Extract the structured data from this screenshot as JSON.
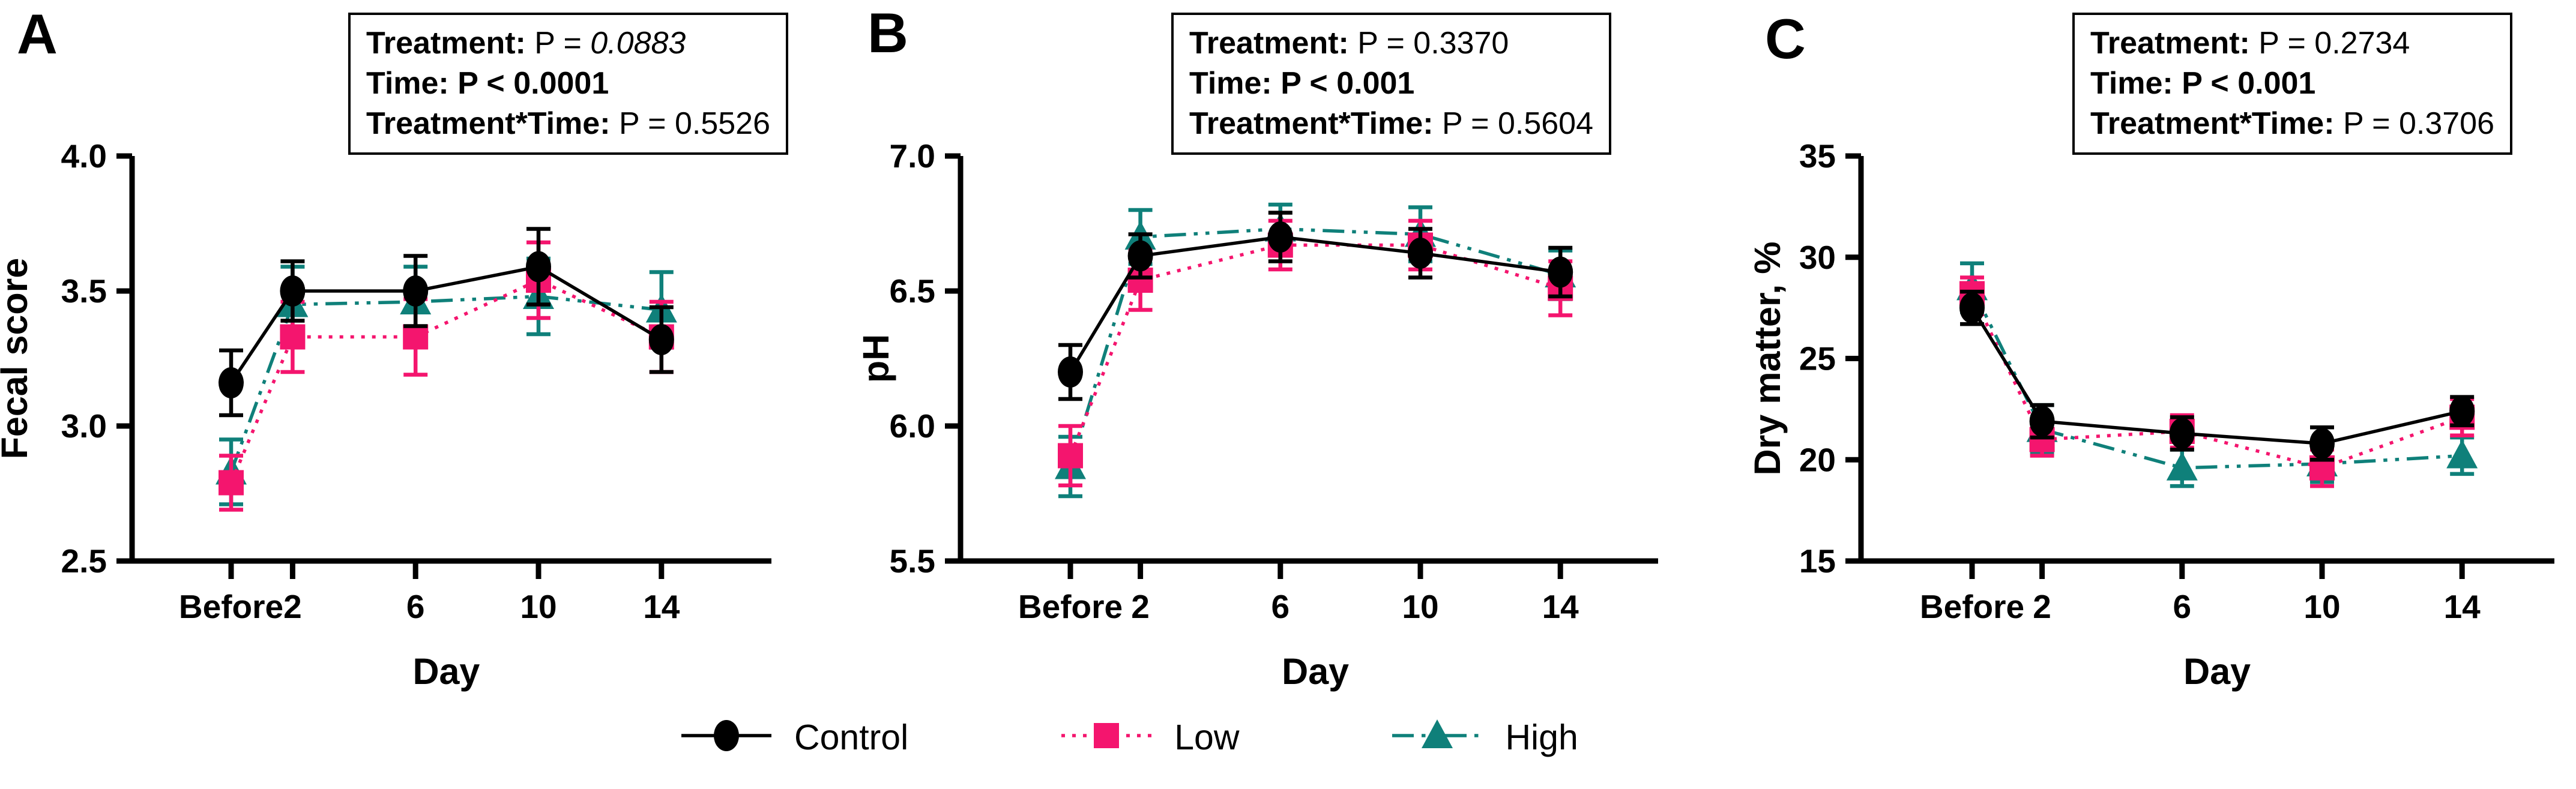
{
  "series_styles": [
    {
      "name": "Control",
      "color": "#000000",
      "marker": "circle",
      "line": "solid"
    },
    {
      "name": "Low",
      "color": "#F4156E",
      "marker": "square",
      "line": "dotted"
    },
    {
      "name": "High",
      "color": "#0F807A",
      "marker": "triangle",
      "line": "dashdot"
    }
  ],
  "legend": {
    "items": [
      {
        "label": "Control"
      },
      {
        "label": "Low"
      },
      {
        "label": "High"
      }
    ]
  },
  "chart_data": [
    {
      "type": "line",
      "panel": "A",
      "ylabel": "Fecal score",
      "xlabel": "Day",
      "ylim": [
        2.5,
        4.0
      ],
      "yticks": [
        "2.5",
        "3.0",
        "3.5",
        "4.0"
      ],
      "x_categories": [
        "Before",
        "2",
        "6",
        "10",
        "14"
      ],
      "x_days": [
        0,
        2,
        6,
        10,
        14
      ],
      "grid": false,
      "stats": {
        "rows": [
          {
            "label": "Treatment:",
            "pre": " P = ",
            "value": "0.0883",
            "style": "italic"
          },
          {
            "label": "Time:",
            "pre": " ",
            "value": "P < 0.0001",
            "style": "bold"
          },
          {
            "label": "Treatment*Time:",
            "pre": " P = ",
            "value": "0.5526",
            "style": "normal"
          }
        ]
      },
      "series": [
        {
          "name": "Control",
          "values": [
            3.16,
            3.5,
            3.5,
            3.59,
            3.32
          ],
          "errors": [
            0.12,
            0.11,
            0.13,
            0.14,
            0.12
          ]
        },
        {
          "name": "Low",
          "values": [
            2.79,
            3.33,
            3.33,
            3.54,
            3.33
          ],
          "errors": [
            0.1,
            0.13,
            0.14,
            0.14,
            0.13
          ]
        },
        {
          "name": "High",
          "values": [
            2.83,
            3.45,
            3.46,
            3.48,
            3.43
          ],
          "errors": [
            0.12,
            0.14,
            0.13,
            0.14,
            0.14
          ]
        }
      ]
    },
    {
      "type": "line",
      "panel": "B",
      "ylabel": "pH",
      "xlabel": "Day",
      "ylim": [
        5.5,
        7.0
      ],
      "yticks": [
        "5.5",
        "6.0",
        "6.5",
        "7.0"
      ],
      "x_categories": [
        "Before",
        "2",
        "6",
        "10",
        "14"
      ],
      "x_days": [
        0,
        2,
        6,
        10,
        14
      ],
      "grid": false,
      "stats": {
        "rows": [
          {
            "label": "Treatment:",
            "pre": " P = ",
            "value": "0.3370",
            "style": "normal"
          },
          {
            "label": "Time:",
            "pre": " ",
            "value": "P < 0.001",
            "style": "bold"
          },
          {
            "label": "Treatment*Time:",
            "pre": " P = ",
            "value": "0.5604",
            "style": "normal"
          }
        ]
      },
      "series": [
        {
          "name": "Control",
          "values": [
            6.2,
            6.63,
            6.7,
            6.64,
            6.57
          ],
          "errors": [
            0.1,
            0.08,
            0.09,
            0.09,
            0.09
          ]
        },
        {
          "name": "Low",
          "values": [
            5.89,
            6.54,
            6.67,
            6.67,
            6.51
          ],
          "errors": [
            0.11,
            0.11,
            0.09,
            0.09,
            0.1
          ]
        },
        {
          "name": "High",
          "values": [
            5.85,
            6.7,
            6.73,
            6.71,
            6.56
          ],
          "errors": [
            0.11,
            0.1,
            0.09,
            0.1,
            0.09
          ]
        }
      ]
    },
    {
      "type": "line",
      "panel": "C",
      "ylabel": "Dry matter, %",
      "xlabel": "Day",
      "ylim": [
        15,
        35
      ],
      "yticks": [
        "15",
        "20",
        "25",
        "30",
        "35"
      ],
      "x_categories": [
        "Before",
        "2",
        "6",
        "10",
        "14"
      ],
      "x_days": [
        0,
        2,
        6,
        10,
        14
      ],
      "grid": false,
      "stats": {
        "rows": [
          {
            "label": "Treatment:",
            "pre": " P = ",
            "value": "0.2734",
            "style": "normal"
          },
          {
            "label": "Time:",
            "pre": " ",
            "value": "P < 0.001",
            "style": "bold"
          },
          {
            "label": "Treatment*Time:",
            "pre": " P = ",
            "value": "0.3706",
            "style": "normal"
          }
        ]
      },
      "series": [
        {
          "name": "Control",
          "values": [
            27.5,
            21.9,
            21.3,
            20.8,
            22.4
          ],
          "errors": [
            0.8,
            0.8,
            0.8,
            0.8,
            0.7
          ]
        },
        {
          "name": "Low",
          "values": [
            28.2,
            21.0,
            21.4,
            19.6,
            22.1
          ],
          "errors": [
            0.8,
            0.8,
            0.8,
            0.9,
            0.9
          ]
        },
        {
          "name": "High",
          "values": [
            28.5,
            21.5,
            19.6,
            19.8,
            20.2
          ],
          "errors": [
            1.2,
            1.2,
            0.9,
            0.9,
            0.9
          ]
        }
      ]
    }
  ]
}
